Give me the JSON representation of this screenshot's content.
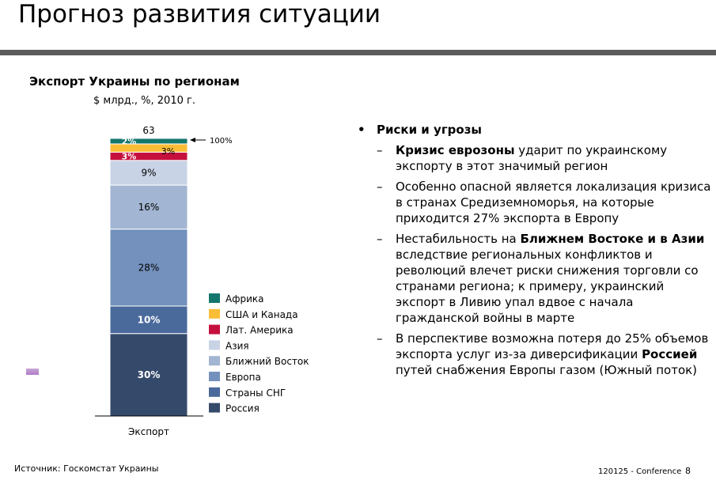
{
  "header": {
    "title": "Прогноз развития ситуации"
  },
  "chart_data": {
    "type": "bar",
    "title": "Экспорт Украины по регионам",
    "subtitle": "$ млрд., %, 2010 г.",
    "categories": [
      "Экспорт"
    ],
    "total_label": "63",
    "reference_label": "100%",
    "series": [
      {
        "name": "Россия",
        "values": [
          30
        ],
        "label": "30%",
        "color": "#354a6b"
      },
      {
        "name": "Страны СНГ",
        "values": [
          10
        ],
        "label": "10%",
        "color": "#4a6a9c"
      },
      {
        "name": "Европа",
        "values": [
          28
        ],
        "label": "28%",
        "color": "#7391bc"
      },
      {
        "name": "Ближний Восток",
        "values": [
          16
        ],
        "label": "16%",
        "color": "#a2b5d2"
      },
      {
        "name": "Азия",
        "values": [
          9
        ],
        "label": "9%",
        "color": "#c9d3e6"
      },
      {
        "name": "Лат. Америка",
        "values": [
          3
        ],
        "label": "3%",
        "color": "#c5103e"
      },
      {
        "name": "США и Канада",
        "values": [
          3
        ],
        "label": "3%",
        "color": "#f9bd36"
      },
      {
        "name": "Африка",
        "values": [
          2
        ],
        "label": "2%",
        "color": "#13766c"
      }
    ]
  },
  "risks": {
    "heading": "Риски и угрозы",
    "items": [
      {
        "b1": "Кризис еврозоны",
        "t1": " ударит по украинскому экспорту в этот значимый регион"
      },
      {
        "t0": "Особенно опасной является локализация кризиса в странах Средиземноморья, на которые приходится 27% экспорта в Европу"
      },
      {
        "t0": "Нестабильность на ",
        "b1": "Ближнем Востоке и в Азии",
        "t1": " вследствие региональных конфликтов и революций влечет риски снижения торговли со странами региона; к примеру, украинский экспорт в Ливию упал вдвое с начала гражданской войны в марте"
      },
      {
        "t0": "В перспективе возможна потеря до 25% объемов экспорта услуг из-за диверсификации ",
        "b1": "Россией",
        "t1": " путей снабжения Европы газом (Южный поток)"
      }
    ]
  },
  "footer": {
    "source": "Источник: Госкомстат Украины",
    "conference": "120125 - Conference",
    "page": "8"
  }
}
